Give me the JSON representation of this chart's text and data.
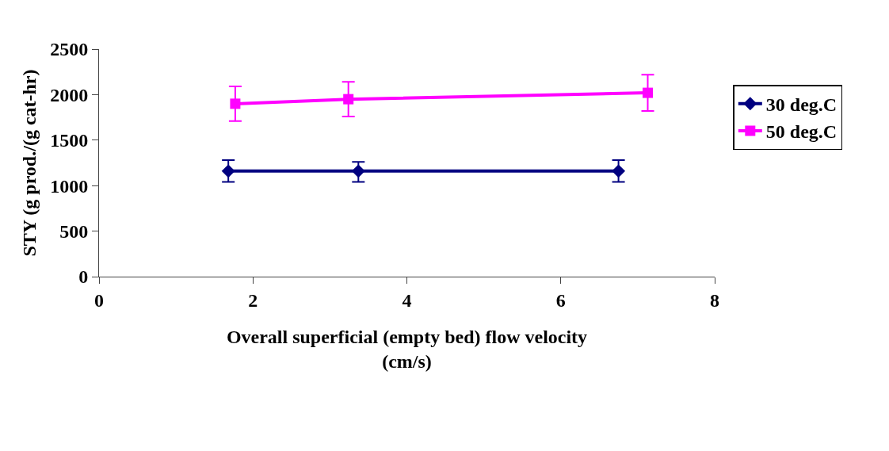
{
  "chart_data": {
    "type": "line",
    "xlabel": "Overall superficial (empty bed) flow velocity\n(cm/s)",
    "ylabel": "STY (g prod./(g cat-hr)",
    "xlim": [
      0,
      8
    ],
    "xticks": [
      0,
      2,
      4,
      6,
      8
    ],
    "ylim": [
      0,
      2500
    ],
    "yticks": [
      0,
      500,
      1000,
      1500,
      2000,
      2500
    ],
    "legend": "right",
    "series": [
      {
        "name": "30 deg.C",
        "color": "#000080",
        "marker": "diamond",
        "x": [
          1.68,
          3.37,
          6.75
        ],
        "values": [
          1160,
          1160,
          1160
        ],
        "errors": [
          [
            1040,
            1280
          ],
          [
            1040,
            1260
          ],
          [
            1040,
            1280
          ]
        ]
      },
      {
        "name": "50 deg.C",
        "color": "#ff00ff",
        "marker": "square",
        "x": [
          1.77,
          3.24,
          7.13
        ],
        "values": [
          1900,
          1950,
          2020
        ],
        "errors": [
          190,
          190,
          200
        ]
      }
    ]
  }
}
